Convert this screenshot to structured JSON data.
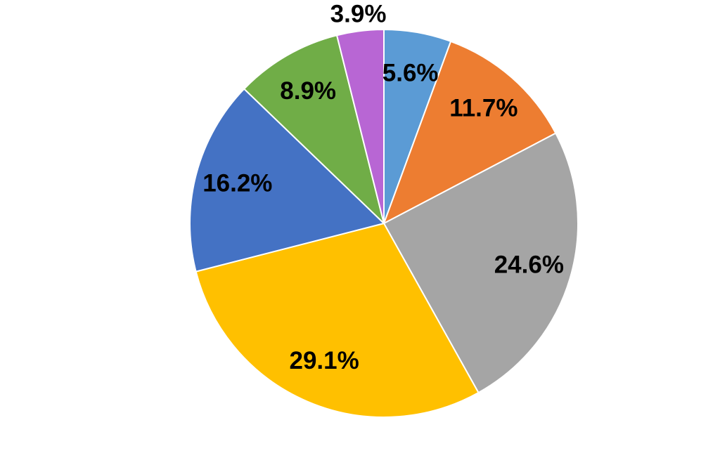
{
  "chart_data": {
    "type": "pie",
    "values": [
      5.6,
      11.7,
      24.6,
      29.1,
      16.2,
      8.9,
      3.9
    ],
    "value_labels": [
      "5.6%",
      "11.7%",
      "24.6%",
      "29.1%",
      "16.2%",
      "8.9%",
      "3.9%"
    ],
    "colors": [
      "#5b9bd5",
      "#ed7d31",
      "#a5a5a5",
      "#ffc000",
      "#4472c4",
      "#70ad47",
      "#b866d4"
    ]
  }
}
